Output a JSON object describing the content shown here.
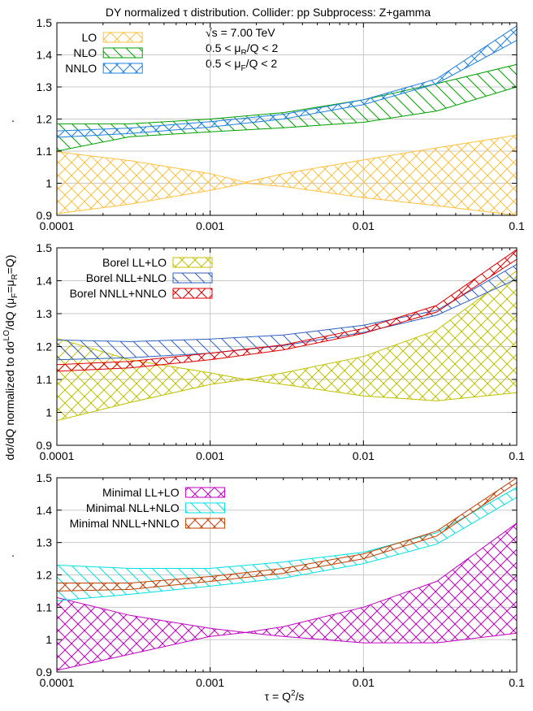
{
  "title": "DY normalized τ distribution.   Collider: pp   Subprocess: Z+gamma",
  "ylabel_shared": "dσ/dQ  normalized to  dσLO/dQ (μF=μR=Q)",
  "ylabel_parts": {
    "a": "dσ/dQ  normalized to  dσ",
    "sup": "LO",
    "b": "/dQ (μ",
    "s1": "F",
    "c": "=μ",
    "s2": "R",
    "d": "=Q)"
  },
  "side_marks": [
    ".",
    "."
  ],
  "xlabel_parts": {
    "a": "τ = Q",
    "sup": "2",
    "b": "/s"
  },
  "annotations": {
    "sqrt_s": "√s = 7.00 TeV",
    "muR": {
      "a": "0.5 < μ",
      "sub": "R",
      "b": "/Q < 2"
    },
    "muF": {
      "a": "0.5 < μ",
      "sub": "F",
      "b": "/Q < 2"
    }
  },
  "chart_data": [
    {
      "type": "area",
      "panel": "top",
      "x_scale": "log",
      "xlim": [
        0.0001,
        0.1
      ],
      "ylim": [
        0.9,
        1.5
      ],
      "xticks": [
        "0.0001",
        "0.001",
        "0.01",
        "0.1"
      ],
      "yticks": [
        "0.9",
        "1",
        "1.1",
        "1.2",
        "1.3",
        "1.4",
        "1.5"
      ],
      "grid": true,
      "legend": "top-left",
      "series": [
        {
          "name": "LO",
          "color": "#ffc040",
          "hatch": "cross",
          "x": [
            0.0001,
            0.0003,
            0.001,
            0.0017,
            0.003,
            0.01,
            0.03,
            0.1
          ],
          "upper": [
            1.098,
            1.07,
            1.03,
            1.003,
            1.03,
            1.073,
            1.11,
            1.15
          ],
          "lower": [
            0.905,
            0.935,
            0.978,
            1.0,
            0.99,
            0.955,
            0.93,
            0.9
          ]
        },
        {
          "name": "NLO",
          "color": "#00a000",
          "hatch": "diag",
          "x": [
            0.0001,
            0.0003,
            0.001,
            0.003,
            0.01,
            0.03,
            0.1
          ],
          "upper": [
            1.185,
            1.185,
            1.2,
            1.22,
            1.26,
            1.31,
            1.37
          ],
          "lower": [
            1.1,
            1.145,
            1.16,
            1.173,
            1.19,
            1.225,
            1.3
          ]
        },
        {
          "name": "NNLO",
          "color": "#2080e0",
          "hatch": "cross",
          "x": [
            0.0001,
            0.0003,
            0.001,
            0.003,
            0.01,
            0.03,
            0.1
          ],
          "upper": [
            1.163,
            1.172,
            1.192,
            1.215,
            1.26,
            1.325,
            1.49
          ],
          "lower": [
            1.143,
            1.155,
            1.175,
            1.2,
            1.245,
            1.31,
            1.445
          ]
        }
      ]
    },
    {
      "type": "area",
      "panel": "middle",
      "x_scale": "log",
      "xlim": [
        0.0001,
        0.1
      ],
      "ylim": [
        0.9,
        1.5
      ],
      "xticks": [
        "0.0001",
        "0.001",
        "0.01",
        "0.1"
      ],
      "yticks": [
        "0.9",
        "1",
        "1.1",
        "1.2",
        "1.3",
        "1.4",
        "1.5"
      ],
      "grid": true,
      "legend": "top-left",
      "series": [
        {
          "name": "Borel LL+LO",
          "color": "#c0c000",
          "hatch": "cross",
          "x": [
            0.0001,
            0.0003,
            0.001,
            0.0017,
            0.003,
            0.01,
            0.03,
            0.1
          ],
          "upper": [
            1.225,
            1.16,
            1.12,
            1.1,
            1.12,
            1.17,
            1.25,
            1.43
          ],
          "lower": [
            0.975,
            1.03,
            1.085,
            1.1,
            1.085,
            1.05,
            1.035,
            1.06
          ]
        },
        {
          "name": "Borel NLL+NLO",
          "color": "#3060c0",
          "hatch": "diag",
          "x": [
            0.0001,
            0.0003,
            0.001,
            0.003,
            0.01,
            0.03,
            0.1
          ],
          "upper": [
            1.22,
            1.215,
            1.223,
            1.235,
            1.265,
            1.31,
            1.45
          ],
          "lower": [
            1.16,
            1.166,
            1.18,
            1.203,
            1.243,
            1.295,
            1.405
          ]
        },
        {
          "name": "Borel NNLL+NNLO",
          "color": "#e00000",
          "hatch": "cross",
          "x": [
            0.0001,
            0.0003,
            0.001,
            0.003,
            0.01,
            0.03,
            0.1
          ],
          "upper": [
            1.145,
            1.155,
            1.18,
            1.205,
            1.255,
            1.325,
            1.495
          ],
          "lower": [
            1.125,
            1.135,
            1.16,
            1.19,
            1.24,
            1.305,
            1.465
          ]
        }
      ]
    },
    {
      "type": "area",
      "panel": "bottom",
      "x_scale": "log",
      "xlim": [
        0.0001,
        0.1
      ],
      "ylim": [
        0.9,
        1.5
      ],
      "xticks": [
        "0.0001",
        "0.001",
        "0.01",
        "0.1"
      ],
      "yticks": [
        "0.9",
        "1",
        "1.1",
        "1.2",
        "1.3",
        "1.4",
        "1.5"
      ],
      "grid": true,
      "legend": "top-left",
      "series": [
        {
          "name": "Minimal LL+LO",
          "color": "#c000c0",
          "hatch": "cross",
          "x": [
            0.0001,
            0.0003,
            0.001,
            0.0017,
            0.003,
            0.01,
            0.03,
            0.1
          ],
          "upper": [
            1.13,
            1.075,
            1.035,
            1.022,
            1.04,
            1.1,
            1.18,
            1.36
          ],
          "lower": [
            0.905,
            0.955,
            1.01,
            1.022,
            1.01,
            0.99,
            0.99,
            1.02
          ]
        },
        {
          "name": "Minimal NLL+NLO",
          "color": "#00e0e0",
          "hatch": "diag",
          "x": [
            0.0001,
            0.0003,
            0.001,
            0.003,
            0.01,
            0.03,
            0.1
          ],
          "upper": [
            1.23,
            1.22,
            1.22,
            1.24,
            1.27,
            1.33,
            1.47
          ],
          "lower": [
            1.12,
            1.14,
            1.165,
            1.19,
            1.235,
            1.295,
            1.44
          ]
        },
        {
          "name": "Minimal NNLL+NNLO",
          "color": "#c04000",
          "hatch": "cross",
          "x": [
            0.0001,
            0.0003,
            0.001,
            0.003,
            0.01,
            0.03,
            0.1
          ],
          "upper": [
            1.175,
            1.175,
            1.195,
            1.22,
            1.265,
            1.335,
            1.5
          ],
          "lower": [
            1.15,
            1.155,
            1.18,
            1.205,
            1.25,
            1.32,
            1.485
          ]
        }
      ]
    }
  ]
}
